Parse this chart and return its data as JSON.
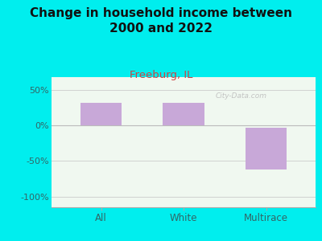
{
  "title": "Change in household income between\n2000 and 2022",
  "subtitle": "Freeburg, IL",
  "categories": [
    "All",
    "White",
    "Multirace"
  ],
  "bar_bottoms": [
    0,
    0,
    -62
  ],
  "bar_tops": [
    32,
    32,
    -3
  ],
  "bar_color": "#c8a8d8",
  "background_outer": "#00eeee",
  "background_plot": "#f0f8f0",
  "title_fontsize": 11,
  "title_color": "#111111",
  "subtitle_fontsize": 9.5,
  "subtitle_color": "#cc4444",
  "tick_label_color": "#336666",
  "ytick_labels": [
    "-100%",
    "-50%",
    "0%",
    "50%"
  ],
  "ytick_values": [
    -100,
    -50,
    0,
    50
  ],
  "ylim": [
    -115,
    68
  ],
  "watermark": "City-Data.com"
}
